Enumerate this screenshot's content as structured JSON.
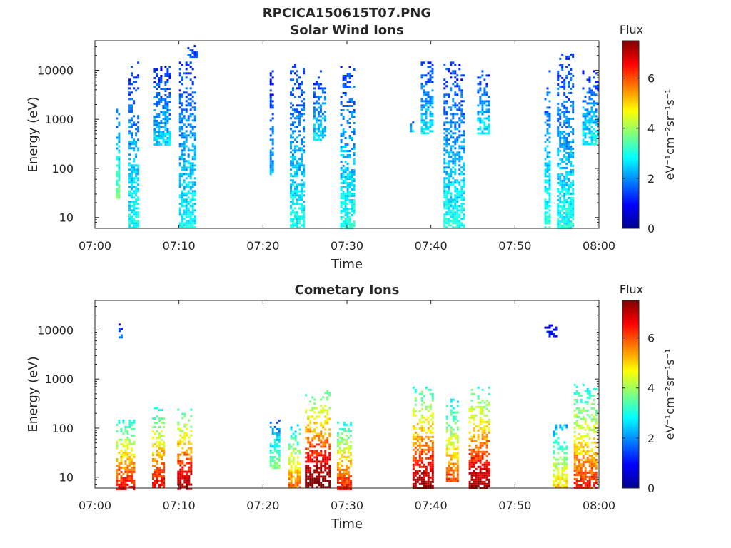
{
  "figure_title": "RPCICA150615T07.PNG",
  "chart_data": [
    {
      "type": "heatmap",
      "title": "Solar Wind Ions",
      "xlabel": "Time",
      "ylabel": "Energy (eV)",
      "x_range": [
        "07:00",
        "08:00"
      ],
      "x_ticks": [
        "07:00",
        "07:10",
        "07:20",
        "07:30",
        "07:40",
        "07:50",
        "08:00"
      ],
      "y_scale": "log",
      "y_range": [
        6,
        40000
      ],
      "y_ticks": [
        "10",
        "100",
        "1000",
        "10000"
      ],
      "colorbar": {
        "title": "Flux",
        "label": "eV⁻¹cm⁻²sr⁻¹s⁻¹",
        "range": [
          0,
          7.5
        ],
        "ticks": [
          "0",
          "2",
          "4",
          "6"
        ]
      },
      "colormap": "jet",
      "bursts": [
        {
          "t": 2.5,
          "t_end": 2.9,
          "e_min": 25,
          "e_max": 2000,
          "flux": 2.8
        },
        {
          "t": 4.0,
          "t_end": 5.2,
          "e_min": 6,
          "e_max": 15000,
          "flux": 2.3
        },
        {
          "t": 7.0,
          "t_end": 9.0,
          "e_min": 300,
          "e_max": 12000,
          "flux": 2.0
        },
        {
          "t": 10.0,
          "t_end": 11.8,
          "e_min": 6,
          "e_max": 15000,
          "flux": 2.3
        },
        {
          "t": 11.0,
          "t_end": 12.2,
          "e_min": 18000,
          "e_max": 36000,
          "flux": 1.5
        },
        {
          "t": 20.8,
          "t_end": 21.3,
          "e_min": 80,
          "e_max": 10000,
          "flux": 1.8
        },
        {
          "t": 23.2,
          "t_end": 24.8,
          "e_min": 6,
          "e_max": 15000,
          "flux": 2.3
        },
        {
          "t": 26.0,
          "t_end": 27.5,
          "e_min": 400,
          "e_max": 10000,
          "flux": 2.0
        },
        {
          "t": 29.2,
          "t_end": 30.8,
          "e_min": 6,
          "e_max": 12000,
          "flux": 2.4
        },
        {
          "t": 37.5,
          "t_end": 38.0,
          "e_min": 600,
          "e_max": 1000,
          "flux": 1.8
        },
        {
          "t": 38.8,
          "t_end": 40.2,
          "e_min": 500,
          "e_max": 15000,
          "flux": 2.2
        },
        {
          "t": 41.5,
          "t_end": 44.0,
          "e_min": 6,
          "e_max": 15000,
          "flux": 2.3
        },
        {
          "t": 45.5,
          "t_end": 46.8,
          "e_min": 500,
          "e_max": 10000,
          "flux": 2.2
        },
        {
          "t": 53.5,
          "t_end": 54.2,
          "e_min": 6,
          "e_max": 10000,
          "flux": 2.4
        },
        {
          "t": 55.0,
          "t_end": 56.8,
          "e_min": 6,
          "e_max": 22000,
          "flux": 2.3
        },
        {
          "t": 58.0,
          "t_end": 60.0,
          "e_min": 300,
          "e_max": 10000,
          "flux": 2.2
        }
      ]
    },
    {
      "type": "heatmap",
      "title": "Cometary Ions",
      "xlabel": "Time",
      "ylabel": "Energy (eV)",
      "x_range": [
        "07:00",
        "08:00"
      ],
      "x_ticks": [
        "07:00",
        "07:10",
        "07:20",
        "07:30",
        "07:40",
        "07:50",
        "08:00"
      ],
      "y_scale": "log",
      "y_range": [
        6,
        40000
      ],
      "y_ticks": [
        "10",
        "100",
        "1000",
        "10000"
      ],
      "colorbar": {
        "title": "Flux",
        "label": "eV⁻¹cm⁻²sr⁻¹s⁻¹",
        "range": [
          0,
          7.5
        ],
        "ticks": [
          "0",
          "2",
          "4",
          "6"
        ]
      },
      "colormap": "jet",
      "bursts": [
        {
          "t": 2.5,
          "t_end": 4.6,
          "e_min": 6,
          "e_max": 150,
          "flux": 5.2
        },
        {
          "t": 2.8,
          "t_end": 3.2,
          "e_min": 7000,
          "e_max": 15000,
          "flux": 1.5
        },
        {
          "t": 6.8,
          "t_end": 8.2,
          "e_min": 6,
          "e_max": 300,
          "flux": 5.3
        },
        {
          "t": 9.8,
          "t_end": 11.5,
          "e_min": 6,
          "e_max": 250,
          "flux": 5.8
        },
        {
          "t": 20.8,
          "t_end": 22.0,
          "e_min": 15,
          "e_max": 150,
          "flux": 3.0
        },
        {
          "t": 23.0,
          "t_end": 24.5,
          "e_min": 6,
          "e_max": 120,
          "flux": 4.6
        },
        {
          "t": 25.0,
          "t_end": 28.0,
          "e_min": 6,
          "e_max": 600,
          "flux": 6.2
        },
        {
          "t": 28.8,
          "t_end": 30.5,
          "e_min": 6,
          "e_max": 150,
          "flux": 5.0
        },
        {
          "t": 37.8,
          "t_end": 40.2,
          "e_min": 6,
          "e_max": 700,
          "flux": 5.8
        },
        {
          "t": 41.8,
          "t_end": 43.2,
          "e_min": 8,
          "e_max": 400,
          "flux": 4.8
        },
        {
          "t": 44.5,
          "t_end": 46.8,
          "e_min": 6,
          "e_max": 700,
          "flux": 5.8
        },
        {
          "t": 53.5,
          "t_end": 54.8,
          "e_min": 7500,
          "e_max": 13000,
          "flux": 1.0
        },
        {
          "t": 54.5,
          "t_end": 56.2,
          "e_min": 6,
          "e_max": 120,
          "flux": 4.0
        },
        {
          "t": 57.0,
          "t_end": 59.8,
          "e_min": 6,
          "e_max": 800,
          "flux": 5.0
        }
      ]
    }
  ]
}
